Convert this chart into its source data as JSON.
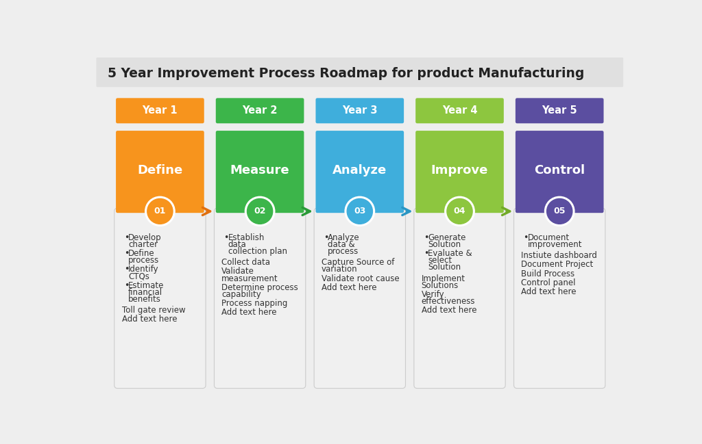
{
  "title": "5 Year Improvement Process Roadmap for product Manufacturing",
  "background_color": "#eeeeee",
  "columns": [
    {
      "year": "Year 1",
      "phase": "Define",
      "number": "01",
      "color": "#F7941D",
      "arrow_color": "#E07010",
      "bullet_items": [
        "Develop\ncharter",
        "Define\nprocess",
        "Identify\nCTQs",
        "Estimate\nfinancial\nbenefits"
      ],
      "extra_items": [
        "Toll gate review",
        "Add text here"
      ]
    },
    {
      "year": "Year 2",
      "phase": "Measure",
      "number": "02",
      "color": "#3CB54A",
      "arrow_color": "#2A9A38",
      "bullet_items": [
        "Establish\ndata\ncollection plan"
      ],
      "extra_items": [
        "Collect data",
        "Validate\nmeasurement",
        "Determine process\ncapability",
        "Process napping",
        "Add text here"
      ]
    },
    {
      "year": "Year 3",
      "phase": "Analyze",
      "number": "03",
      "color": "#3FAEDC",
      "arrow_color": "#2A96C4",
      "bullet_items": [
        "Analyze\ndata &\nprocess"
      ],
      "extra_items": [
        "Capture Source of\nvariation",
        "Validate root cause",
        "Add text here"
      ]
    },
    {
      "year": "Year 4",
      "phase": "Improve",
      "number": "04",
      "color": "#8DC63F",
      "arrow_color": "#72AA28",
      "bullet_items": [
        "Generate\nSolution",
        "Evaluate &\nselect\nSolution"
      ],
      "extra_items": [
        "Implement\nSolutions",
        "Verify\neffectiveness",
        "Add text here"
      ]
    },
    {
      "year": "Year 5",
      "phase": "Control",
      "number": "05",
      "color": "#5B4EA0",
      "arrow_color": null,
      "bullet_items": [
        "Document\nimprovement"
      ],
      "extra_items": [
        "Instiute dashboard",
        "Document Project",
        "Build Process",
        "Control panel",
        "Add text here"
      ]
    }
  ]
}
